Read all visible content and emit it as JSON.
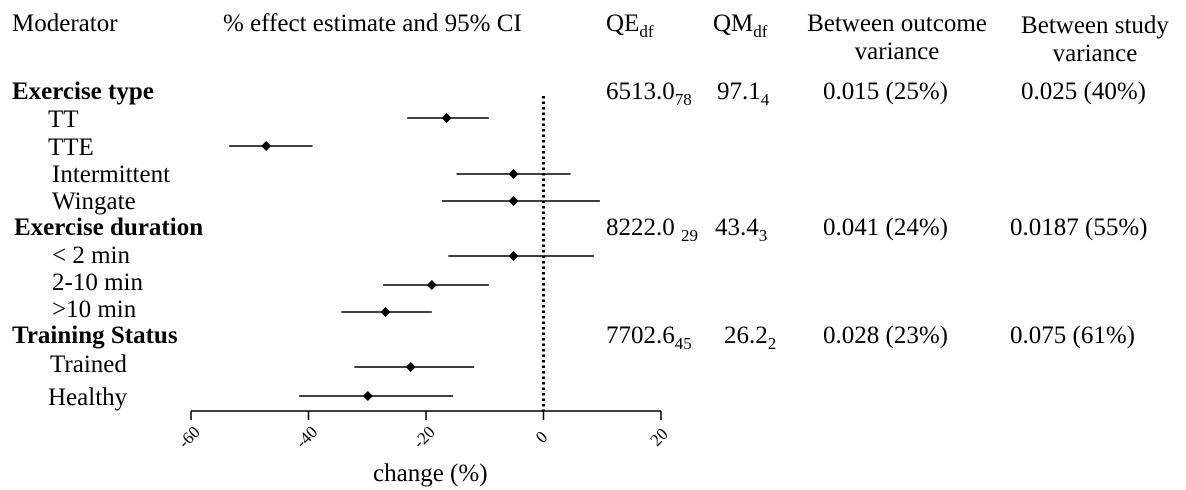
{
  "headers": {
    "moderator": "Moderator",
    "effect": "% effect estimate and 95% CI",
    "qe": "QE",
    "qe_sub": "df",
    "qm": "QM",
    "qm_sub": "df",
    "between_outcome": "Between outcome",
    "between_outcome_2": "variance",
    "between_study": "Between study",
    "between_study_2": "variance"
  },
  "groups": [
    {
      "title": "Exercise type",
      "qe": "6513.0",
      "qe_df": "78",
      "qm": "97.1",
      "qm_df": "4",
      "between_outcome": "0.015 (25%)",
      "between_study": "0.025 (40%)",
      "rows": [
        {
          "label": "TT"
        },
        {
          "label": "TTE"
        },
        {
          "label": "Intermittent"
        },
        {
          "label": "Wingate"
        }
      ]
    },
    {
      "title": "Exercise duration",
      "qe": "8222.0 ",
      "qe_df": "29",
      "qm": "43.4",
      "qm_df": "3",
      "between_outcome": "0.041 (24%)",
      "between_study": "0.0187 (55%)",
      "rows": [
        {
          "label": "< 2 min"
        },
        {
          "label": "2-10 min"
        },
        {
          "label": ">10 min"
        }
      ]
    },
    {
      "title": "Training Status",
      "qe": "7702.6",
      "qe_df": "45",
      "qm": "26.2",
      "qm_df": "2",
      "between_outcome": "0.028 (23%)",
      "between_study": "0.075 (61%)",
      "rows": [
        {
          "label": "Trained"
        },
        {
          "label": "Healthy"
        }
      ]
    }
  ],
  "chart_data": {
    "type": "forest",
    "xlabel": "change (%)",
    "xlim": [
      -60,
      20
    ],
    "xticks": [
      -60,
      -40,
      -20,
      0,
      20
    ],
    "reference_line": 0,
    "reference_style": "dotted",
    "points": [
      {
        "label": "TT",
        "estimate": -16.5,
        "lower": -23.2,
        "upper": -9.3
      },
      {
        "label": "TTE",
        "estimate": -47.2,
        "lower": -53.5,
        "upper": -39.3
      },
      {
        "label": "Intermittent",
        "estimate": -5.1,
        "lower": -14.8,
        "upper": 4.6
      },
      {
        "label": "Wingate",
        "estimate": -5.1,
        "lower": -17.3,
        "upper": 9.6
      },
      {
        "label": "< 2 min",
        "estimate": -5.1,
        "lower": -16.2,
        "upper": 8.6
      },
      {
        "label": "2-10 min",
        "estimate": -19.0,
        "lower": -27.3,
        "upper": -9.3
      },
      {
        "label": ">10 min",
        "estimate": -26.9,
        "lower": -34.4,
        "upper": -19.0
      },
      {
        "label": "Trained",
        "estimate": -22.6,
        "lower": -32.2,
        "upper": -11.8
      },
      {
        "label": "Healthy",
        "estimate": -29.9,
        "lower": -41.6,
        "upper": -15.4
      }
    ]
  }
}
